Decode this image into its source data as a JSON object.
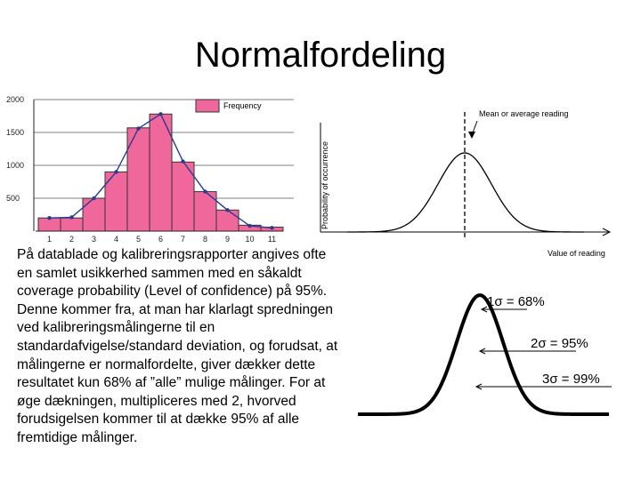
{
  "slide": {
    "title": "Normalfordeling",
    "body_text": "På datablade og kalibreringsrapporter angives ofte en samlet usikkerhed sammen med en såkaldt coverage probability (Level of confidence) på 95%. Denne kommer fra, at man har klarlagt spredningen ved kalibreringsmålingerne til en standardafvigelse/standard deviation, og forudsat, at målingerne er normalfordelte, giver dækker dette resultatet kun 68% af ”alle” mulige målinger. For at øge dækningen, multipliceres med 2, hvorved forudsigelsen kommer til at dække 95% af alle fremtidige målinger."
  },
  "colors": {
    "bar_fill": "#f0679b",
    "bar_stroke": "#333333",
    "line": "#2a3b8f"
  },
  "chart_data": [
    {
      "type": "bar",
      "title": "",
      "categories": [
        "1",
        "2",
        "3",
        "4",
        "5",
        "6",
        "7",
        "8",
        "9",
        "10",
        "11"
      ],
      "values": [
        200,
        200,
        500,
        900,
        1570,
        1780,
        1050,
        600,
        320,
        90,
        60
      ],
      "line_values": [
        200,
        210,
        500,
        900,
        1560,
        1780,
        1060,
        600,
        320,
        80,
        50
      ],
      "legend": "Frequency",
      "yticks": [
        "500",
        "1000",
        "1500",
        "2000"
      ],
      "ylim": [
        0,
        2000
      ],
      "grid": true
    },
    {
      "type": "line",
      "title": "",
      "xlabel": "Value of reading",
      "ylabel": "Probability of occurrence",
      "annotation": "Mean or average reading",
      "distribution": "normal",
      "mean": 0,
      "sd": 1
    },
    {
      "type": "line",
      "title": "",
      "distribution": "normal",
      "mean": 0,
      "sd": 1,
      "annotations": [
        "1σ = 68%",
        "2σ = 95%",
        "3σ = 99%"
      ]
    }
  ]
}
